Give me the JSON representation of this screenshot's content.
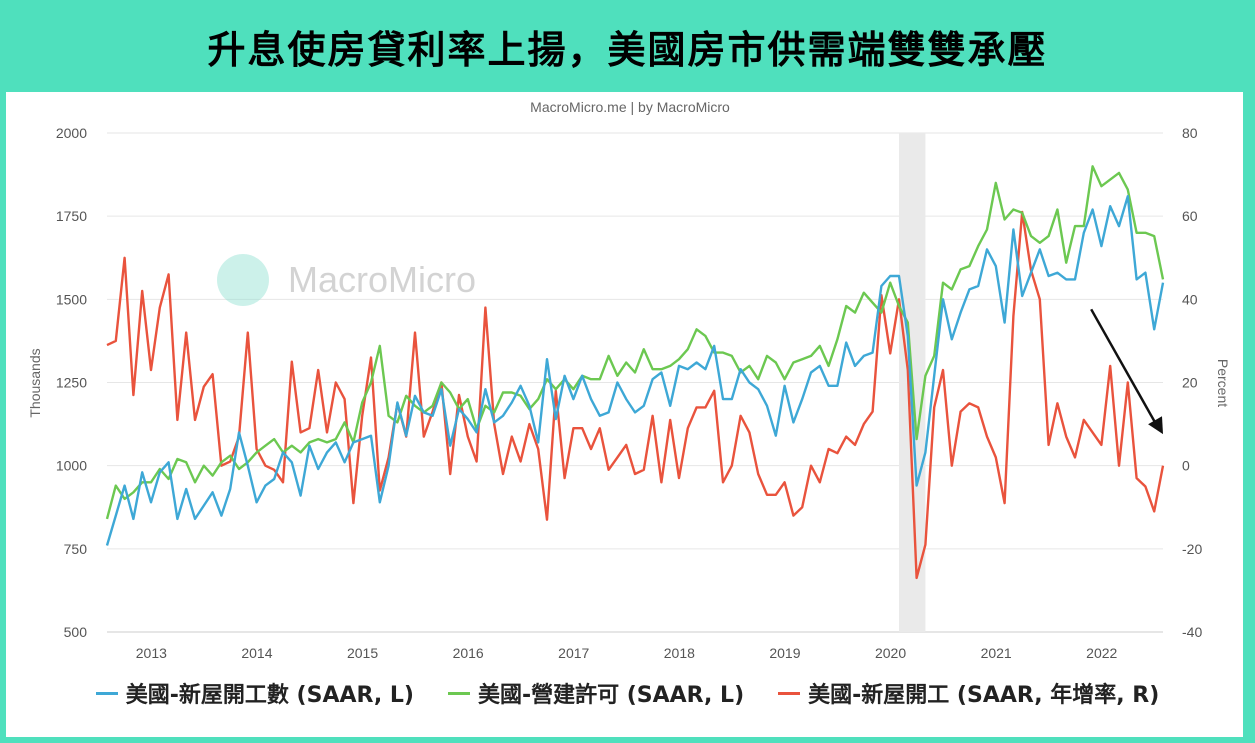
{
  "page": {
    "title": "升息使房貸利率上揚，美國房市供需端雙雙承壓"
  },
  "chart_data": {
    "type": "line",
    "source": "MacroMicro.me | by MacroMicro",
    "watermark": "MacroMicro",
    "ylabel_left": "Thousands",
    "ylabel_right": "Percent",
    "ylim_left": [
      500,
      2000
    ],
    "ylim_right": [
      -40,
      80
    ],
    "yticks_left": [
      500,
      750,
      1000,
      1250,
      1500,
      1750,
      2000
    ],
    "yticks_right": [
      -40,
      -20,
      0,
      20,
      40,
      60,
      80
    ],
    "xticks": [
      "2013",
      "2014",
      "2015",
      "2016",
      "2017",
      "2018",
      "2019",
      "2020",
      "2021",
      "2022"
    ],
    "x_range": [
      2012.58,
      2022.58
    ],
    "recession_band": [
      2020.08,
      2020.33
    ],
    "arrow_annotation": {
      "from": [
        2021.9,
        1470
      ],
      "to": [
        2022.58,
        1095
      ]
    },
    "grid": true,
    "legend_position": "bottom",
    "colors": {
      "starts": "#3ea8d6",
      "permits": "#6cc851",
      "yoy": "#e9533d",
      "band": "#eaeaea",
      "grid": "#e6e6e6"
    },
    "series": [
      {
        "name": "美國-新屋開工數 (SAAR, L)",
        "axis": "left",
        "color": "#3ea8d6",
        "values": [
          760,
          850,
          940,
          840,
          980,
          890,
          980,
          1010,
          840,
          930,
          840,
          880,
          920,
          850,
          930,
          1100,
          1000,
          890,
          940,
          960,
          1040,
          1010,
          910,
          1060,
          990,
          1040,
          1070,
          1010,
          1070,
          1080,
          1090,
          890,
          1000,
          1190,
          1090,
          1210,
          1160,
          1150,
          1230,
          1060,
          1170,
          1140,
          1100,
          1230,
          1130,
          1150,
          1190,
          1240,
          1180,
          1070,
          1320,
          1140,
          1270,
          1200,
          1270,
          1200,
          1150,
          1160,
          1250,
          1200,
          1160,
          1180,
          1260,
          1280,
          1180,
          1300,
          1290,
          1310,
          1290,
          1360,
          1200,
          1200,
          1290,
          1250,
          1230,
          1180,
          1090,
          1240,
          1130,
          1200,
          1280,
          1300,
          1240,
          1240,
          1370,
          1300,
          1330,
          1340,
          1540,
          1570,
          1570,
          1390,
          940,
          1040,
          1270,
          1500,
          1380,
          1460,
          1530,
          1540,
          1650,
          1600,
          1430,
          1710,
          1510,
          1580,
          1650,
          1570,
          1580,
          1560,
          1560,
          1700,
          1770,
          1660,
          1780,
          1720,
          1810,
          1560,
          1580,
          1410,
          1550
        ]
      },
      {
        "name": "美國-營建許可 (SAAR, L)",
        "axis": "left",
        "color": "#6cc851",
        "values": [
          840,
          940,
          900,
          920,
          950,
          950,
          990,
          960,
          1020,
          1010,
          950,
          1000,
          970,
          1010,
          1030,
          990,
          1010,
          1040,
          1060,
          1080,
          1040,
          1060,
          1040,
          1070,
          1080,
          1070,
          1080,
          1130,
          1070,
          1190,
          1250,
          1360,
          1150,
          1130,
          1210,
          1180,
          1160,
          1180,
          1250,
          1220,
          1170,
          1200,
          1110,
          1180,
          1160,
          1220,
          1220,
          1210,
          1170,
          1200,
          1260,
          1230,
          1260,
          1230,
          1270,
          1260,
          1260,
          1330,
          1270,
          1310,
          1280,
          1350,
          1290,
          1290,
          1300,
          1320,
          1350,
          1410,
          1390,
          1340,
          1340,
          1330,
          1280,
          1300,
          1260,
          1330,
          1310,
          1260,
          1310,
          1320,
          1330,
          1360,
          1300,
          1380,
          1480,
          1460,
          1520,
          1490,
          1460,
          1550,
          1480,
          1430,
          1080,
          1270,
          1330,
          1550,
          1530,
          1590,
          1600,
          1660,
          1710,
          1850,
          1740,
          1770,
          1760,
          1690,
          1670,
          1690,
          1770,
          1610,
          1720,
          1720,
          1900,
          1840,
          1860,
          1880,
          1830,
          1700,
          1700,
          1690,
          1560
        ]
      },
      {
        "name": "美國-新屋開工 (SAAR, 年增率, R)",
        "axis": "right",
        "color": "#e9533d",
        "values": [
          29,
          30,
          50,
          17,
          42,
          23,
          38,
          46,
          11,
          32,
          11,
          19,
          22,
          0,
          1,
          7,
          32,
          4,
          0,
          -1,
          -4,
          25,
          8,
          9,
          23,
          8,
          20,
          16,
          -9,
          12,
          26,
          -6,
          2,
          15,
          7,
          32,
          7,
          13,
          20,
          -2,
          17,
          7,
          1,
          38,
          10,
          -2,
          7,
          1,
          10,
          4,
          -13,
          18,
          -3,
          9,
          9,
          4,
          9,
          -1,
          2,
          5,
          -2,
          -1,
          12,
          -4,
          11,
          -3,
          9,
          14,
          14,
          18,
          -4,
          0,
          12,
          8,
          -2,
          -7,
          -7,
          -4,
          -12,
          -10,
          0,
          -4,
          4,
          3,
          7,
          5,
          10,
          13,
          41,
          27,
          40,
          23,
          -27,
          -19,
          14,
          23,
          0,
          13,
          15,
          14,
          7,
          2,
          -9,
          36,
          61,
          47,
          40,
          5,
          15,
          7,
          2,
          11,
          8,
          5,
          24,
          0,
          20,
          -3,
          -5,
          -11,
          0
        ]
      }
    ]
  }
}
